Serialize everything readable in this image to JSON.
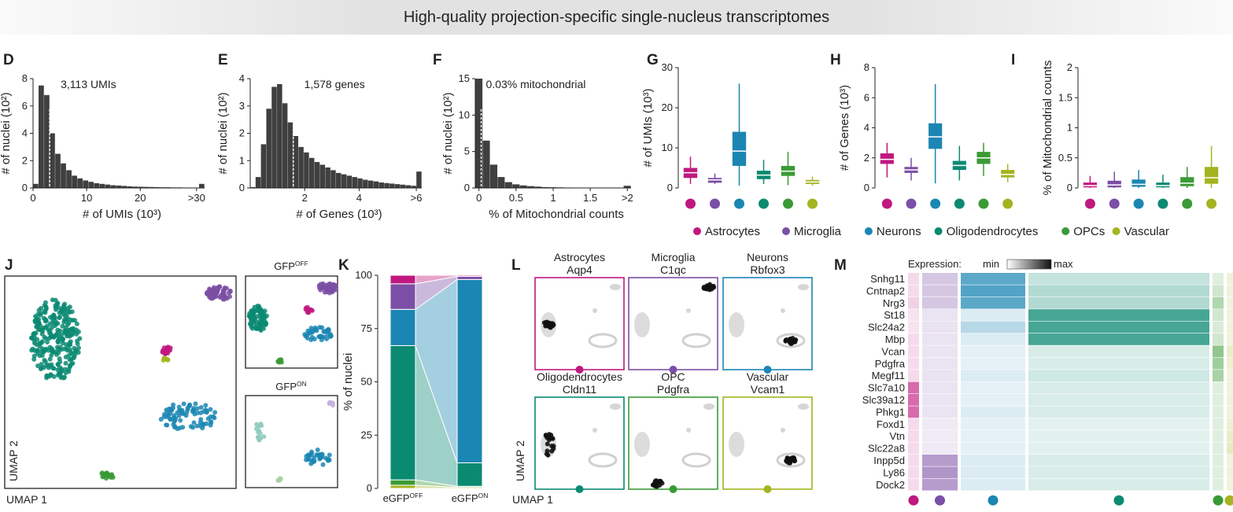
{
  "banner": {
    "title": "High-quality projection-specific single-nucleus transcriptomes"
  },
  "colors": {
    "Astrocytes": "#c0187f",
    "Microglia": "#7b4fa5",
    "Neurons": "#1b86b3",
    "Oligodendrocytes": "#0b8a72",
    "OPCs": "#3a9a35",
    "Vascular": "#a4b420",
    "hist": "#3f3f3f"
  },
  "legend": {
    "items": [
      "Astrocytes",
      "Microglia",
      "Neurons",
      "Oligodendrocytes",
      "OPCs",
      "Vascular"
    ]
  },
  "chart_data": [
    {
      "panel": "D",
      "type": "bar",
      "xlabel": "# of UMIs (10³)",
      "ylabel": "# of nuclei (10²)",
      "xlim": [
        0,
        32
      ],
      "ylim": [
        0,
        8
      ],
      "xticks": [
        "0",
        "10",
        "20",
        ">30"
      ],
      "yticks": [
        "0",
        "2",
        "4",
        "6",
        "8"
      ],
      "annotation": "3,113 UMIs",
      "median": 3.1,
      "values": [
        0.3,
        7.5,
        6.8,
        4.0,
        2.5,
        1.8,
        1.3,
        0.9,
        0.7,
        0.55,
        0.45,
        0.35,
        0.3,
        0.25,
        0.2,
        0.18,
        0.15,
        0.12,
        0.1,
        0.09,
        0.08,
        0.07,
        0.06,
        0.05,
        0.05,
        0.04,
        0.04,
        0.03,
        0.03,
        0.03,
        0.3
      ]
    },
    {
      "panel": "E",
      "type": "bar",
      "xlabel": "# of Genes (10³)",
      "ylabel": "# of nuclei (10²)",
      "xlim": [
        0,
        6.3
      ],
      "ylim": [
        0,
        4
      ],
      "xticks": [
        "2",
        "4",
        ">6"
      ],
      "yticks": [
        "0",
        "1",
        "2",
        "3",
        "4"
      ],
      "annotation": "1,578 genes",
      "median": 1.58,
      "values": [
        0.03,
        0.4,
        1.6,
        2.9,
        3.7,
        3.8,
        3.1,
        2.4,
        1.9,
        1.5,
        1.3,
        1.1,
        0.95,
        0.85,
        0.75,
        0.65,
        0.55,
        0.5,
        0.45,
        0.4,
        0.35,
        0.3,
        0.27,
        0.24,
        0.2,
        0.18,
        0.16,
        0.14,
        0.12,
        0.1,
        0.08,
        0.6
      ]
    },
    {
      "panel": "F",
      "type": "bar",
      "xlabel": "% of Mitochondrial counts",
      "ylabel": "# of nuclei (10²)",
      "xlim": [
        -0.05,
        2.05
      ],
      "ylim": [
        0,
        15
      ],
      "xticks": [
        "0",
        "0.5",
        "1",
        "1.5",
        ">2"
      ],
      "yticks": [
        "0",
        "5",
        "10",
        "15"
      ],
      "annotation": "0.03% mitochondrial",
      "median": 0.03,
      "values": [
        15.0,
        6.5,
        3.2,
        1.5,
        0.8,
        0.5,
        0.35,
        0.25,
        0.18,
        0.12,
        0.1,
        0.08,
        0.06,
        0.05,
        0.04,
        0.03,
        0.03,
        0.02,
        0.02,
        0.02,
        0.3
      ]
    },
    {
      "panel": "G",
      "type": "box",
      "ylabel": "# of UMIs (10³)",
      "ylim": [
        0,
        30
      ],
      "yticks": [
        "0",
        "10",
        "20",
        "30"
      ],
      "boxes": [
        {
          "cls": "Astrocytes",
          "min": 1,
          "q1": 2.5,
          "med": 3.8,
          "q3": 5,
          "max": 7.8
        },
        {
          "cls": "Microglia",
          "min": 1,
          "q1": 1.3,
          "med": 2,
          "q3": 2.5,
          "max": 3.6
        },
        {
          "cls": "Neurons",
          "min": 0.6,
          "q1": 5.5,
          "med": 9.2,
          "q3": 14,
          "max": 26
        },
        {
          "cls": "Oligodendrocytes",
          "min": 1,
          "q1": 2.2,
          "med": 3.2,
          "q3": 4.3,
          "max": 7
        },
        {
          "cls": "OPCs",
          "min": 0.7,
          "q1": 3,
          "med": 4.2,
          "q3": 5.5,
          "max": 9
        },
        {
          "cls": "Vascular",
          "min": 0.6,
          "q1": 1,
          "med": 1.5,
          "q3": 2,
          "max": 2.8
        }
      ]
    },
    {
      "panel": "H",
      "type": "box",
      "ylabel": "# of Genes (10³)",
      "ylim": [
        0,
        8
      ],
      "yticks": [
        "0",
        "2",
        "4",
        "6",
        "8"
      ],
      "boxes": [
        {
          "cls": "Astrocytes",
          "min": 0.7,
          "q1": 1.6,
          "med": 1.9,
          "q3": 2.3,
          "max": 3
        },
        {
          "cls": "Microglia",
          "min": 0.5,
          "q1": 1,
          "med": 1.2,
          "q3": 1.4,
          "max": 2
        },
        {
          "cls": "Neurons",
          "min": 0.3,
          "q1": 2.6,
          "med": 3.4,
          "q3": 4.3,
          "max": 6.9
        },
        {
          "cls": "Oligodendrocytes",
          "min": 0.5,
          "q1": 1.2,
          "med": 1.5,
          "q3": 1.8,
          "max": 2.8
        },
        {
          "cls": "OPCs",
          "min": 0.8,
          "q1": 1.6,
          "med": 2,
          "q3": 2.4,
          "max": 3
        },
        {
          "cls": "Vascular",
          "min": 0.4,
          "q1": 0.7,
          "med": 0.9,
          "q3": 1.2,
          "max": 1.6
        }
      ]
    },
    {
      "panel": "I",
      "type": "box",
      "ylabel": "% of Mitochondrial counts",
      "ylim": [
        0,
        2
      ],
      "yticks": [
        "0",
        "0.5",
        "1",
        "1.5",
        "2"
      ],
      "boxes": [
        {
          "cls": "Astrocytes",
          "min": 0,
          "q1": 0.01,
          "med": 0.04,
          "q3": 0.09,
          "max": 0.2
        },
        {
          "cls": "Microglia",
          "min": 0,
          "q1": 0.01,
          "med": 0.05,
          "q3": 0.12,
          "max": 0.27
        },
        {
          "cls": "Neurons",
          "min": 0,
          "q1": 0.02,
          "med": 0.06,
          "q3": 0.14,
          "max": 0.3
        },
        {
          "cls": "Oligodendrocytes",
          "min": 0,
          "q1": 0.01,
          "med": 0.04,
          "q3": 0.09,
          "max": 0.22
        },
        {
          "cls": "OPCs",
          "min": 0,
          "q1": 0.03,
          "med": 0.08,
          "q3": 0.18,
          "max": 0.35
        },
        {
          "cls": "Vascular",
          "min": 0,
          "q1": 0.07,
          "med": 0.17,
          "q3": 0.35,
          "max": 0.7
        }
      ]
    },
    {
      "panel": "K",
      "type": "bar",
      "stacked": true,
      "ylabel": "% of nuclei",
      "ylim": [
        0,
        100
      ],
      "yticks": [
        "0",
        "25",
        "50",
        "75",
        "100"
      ],
      "categories": [
        "eGFPOFF",
        "eGFPON"
      ],
      "category_labels": [
        {
          "base": "eGFP",
          "sup": "OFF"
        },
        {
          "base": "eGFP",
          "sup": "ON"
        }
      ],
      "series": [
        {
          "name": "Vascular",
          "values": [
            1.5,
            0.5
          ]
        },
        {
          "name": "OPCs",
          "values": [
            2.5,
            0.5
          ]
        },
        {
          "name": "Oligodendrocytes",
          "values": [
            63,
            11
          ]
        },
        {
          "name": "Neurons",
          "values": [
            17,
            86
          ]
        },
        {
          "name": "Microglia",
          "values": [
            12,
            1.5
          ]
        },
        {
          "name": "Astrocytes",
          "values": [
            4,
            0.5
          ]
        }
      ]
    },
    {
      "panel": "M",
      "type": "heatmap",
      "legend_label": "Expression:",
      "legend_min": "min",
      "legend_max": "max",
      "genes": [
        "Snhg11",
        "Cntnap2",
        "Nrg3",
        "St18",
        "Slc24a2",
        "Mbp",
        "Vcan",
        "Pdgfra",
        "Megf11",
        "Slc7a10",
        "Slc39a12",
        "Phkg1",
        "Foxd1",
        "Vtn",
        "Slc22a8",
        "Inpp5d",
        "Ly86",
        "Dock2"
      ],
      "columns": [
        "Astrocytes",
        "Microglia",
        "Neurons",
        "Oligodendrocytes",
        "OPCs",
        "Vascular"
      ],
      "values": [
        [
          0.1,
          0.3,
          0.8,
          0.2,
          0.1,
          0.1
        ],
        [
          0.1,
          0.3,
          0.85,
          0.3,
          0.2,
          0.1
        ],
        [
          0.15,
          0.3,
          0.8,
          0.3,
          0.4,
          0.1
        ],
        [
          0.05,
          0.1,
          0.1,
          0.85,
          0.2,
          0.1
        ],
        [
          0.05,
          0.1,
          0.3,
          0.85,
          0.15,
          0.1
        ],
        [
          0.1,
          0.1,
          0.1,
          0.85,
          0.2,
          0.1
        ],
        [
          0.1,
          0.1,
          0.05,
          0.1,
          0.6,
          0.2
        ],
        [
          0.1,
          0.1,
          0.05,
          0.1,
          0.5,
          0.15
        ],
        [
          0.1,
          0.1,
          0.1,
          0.15,
          0.45,
          0.1
        ],
        [
          0.7,
          0.1,
          0.05,
          0.1,
          0.1,
          0.1
        ],
        [
          0.7,
          0.1,
          0.05,
          0.1,
          0.1,
          0.1
        ],
        [
          0.7,
          0.1,
          0.1,
          0.1,
          0.1,
          0.1
        ],
        [
          0.1,
          0.05,
          0.05,
          0.05,
          0.1,
          0.15
        ],
        [
          0.1,
          0.05,
          0.05,
          0.05,
          0.1,
          0.2
        ],
        [
          0.1,
          0.05,
          0.05,
          0.05,
          0.1,
          0.25
        ],
        [
          0.1,
          0.6,
          0.1,
          0.1,
          0.1,
          0.1
        ],
        [
          0.1,
          0.65,
          0.1,
          0.1,
          0.1,
          0.1
        ],
        [
          0.1,
          0.6,
          0.1,
          0.1,
          0.1,
          0.1
        ]
      ]
    }
  ],
  "panels": {
    "letters": [
      "D",
      "E",
      "F",
      "G",
      "H",
      "I",
      "J",
      "K",
      "L",
      "M"
    ],
    "J": {
      "xlabel": "UMAP 1",
      "ylabel": "UMAP 2",
      "off": {
        "base": "GFP",
        "sup": "OFF"
      },
      "on": {
        "base": "GFP",
        "sup": "ON"
      }
    },
    "L": {
      "xlabel": "UMAP 1",
      "ylabel": "UMAP 2",
      "tiles": [
        {
          "cls": "Astrocytes",
          "gene": "Aqp4"
        },
        {
          "cls": "Microglia",
          "gene": "C1qc"
        },
        {
          "cls": "Neurons",
          "gene": "Rbfox3"
        },
        {
          "cls": "Oligodendrocytes",
          "gene": "Cldn11"
        },
        {
          "cls": "OPC",
          "gene": "Pdgfra"
        },
        {
          "cls": "Vascular",
          "gene": "Vcam1"
        }
      ]
    }
  }
}
